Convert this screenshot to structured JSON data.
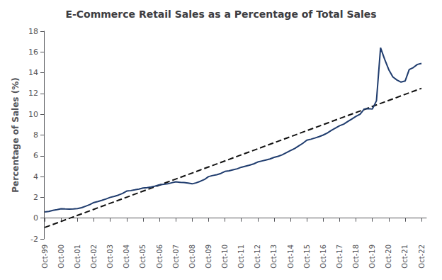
{
  "chart_data": {
    "type": "line",
    "title": "E-Commerce Retail Sales as a Percentage of Total Sales",
    "ylabel": "Percentage of Sales (%)",
    "series": [
      {
        "type": "line",
        "color": "#1F3C6E",
        "line_style": "solid",
        "x": [
          1999.75,
          2000,
          2000.25,
          2000.5,
          2000.75,
          2001,
          2001.25,
          2001.5,
          2001.75,
          2002,
          2002.25,
          2002.5,
          2002.75,
          2003,
          2003.25,
          2003.5,
          2003.75,
          2004,
          2004.25,
          2004.5,
          2004.75,
          2005,
          2005.25,
          2005.5,
          2005.75,
          2006,
          2006.25,
          2006.5,
          2006.75,
          2007,
          2007.25,
          2007.5,
          2007.75,
          2008,
          2008.25,
          2008.5,
          2008.75,
          2009,
          2009.25,
          2009.5,
          2009.75,
          2010,
          2010.25,
          2010.5,
          2010.75,
          2011,
          2011.25,
          2011.5,
          2011.75,
          2012,
          2012.25,
          2012.5,
          2012.75,
          2013,
          2013.25,
          2013.5,
          2013.75,
          2014,
          2014.25,
          2014.5,
          2014.75,
          2015,
          2015.25,
          2015.5,
          2015.75,
          2016,
          2016.25,
          2016.5,
          2016.75,
          2017,
          2017.25,
          2017.5,
          2017.75,
          2018,
          2018.25,
          2018.5,
          2018.75,
          2019,
          2019.25,
          2019.5,
          2019.75,
          2020,
          2020.25,
          2020.5,
          2020.75,
          2021,
          2021.25,
          2021.5,
          2021.75,
          2022,
          2022.25,
          2022.5,
          2022.75
        ],
        "values": [
          0.6,
          0.65,
          0.75,
          0.82,
          0.9,
          0.88,
          0.87,
          0.88,
          0.92,
          1.0,
          1.15,
          1.3,
          1.5,
          1.6,
          1.72,
          1.85,
          2.0,
          2.1,
          2.22,
          2.38,
          2.6,
          2.65,
          2.72,
          2.8,
          2.9,
          2.93,
          3.0,
          3.08,
          3.2,
          3.25,
          3.3,
          3.4,
          3.5,
          3.45,
          3.42,
          3.38,
          3.3,
          3.4,
          3.55,
          3.72,
          4.0,
          4.1,
          4.18,
          4.3,
          4.5,
          4.55,
          4.65,
          4.75,
          4.9,
          5.0,
          5.1,
          5.22,
          5.4,
          5.5,
          5.6,
          5.7,
          5.85,
          5.95,
          6.1,
          6.3,
          6.5,
          6.7,
          6.95,
          7.2,
          7.5,
          7.6,
          7.72,
          7.85,
          8.0,
          8.2,
          8.45,
          8.68,
          8.9,
          9.05,
          9.3,
          9.55,
          9.8,
          10.0,
          10.5,
          10.55,
          10.5,
          11.3,
          16.4,
          15.3,
          14.3,
          13.6,
          13.3,
          13.1,
          13.2,
          14.3,
          14.5,
          14.8,
          14.9
        ]
      },
      {
        "type": "line",
        "color": "#111111",
        "line_style": "dashed",
        "x": [
          1999.75,
          2022.75
        ],
        "values": [
          -0.9,
          12.5
        ]
      }
    ],
    "xlim": [
      1999.7,
      2023.05
    ],
    "xticks": [
      {
        "value": 1999.75,
        "label": "Oct-99"
      },
      {
        "value": 2000.75,
        "label": "Oct-00"
      },
      {
        "value": 2001.75,
        "label": "Oct-01"
      },
      {
        "value": 2002.75,
        "label": "Oct-02"
      },
      {
        "value": 2003.75,
        "label": "Oct-03"
      },
      {
        "value": 2004.75,
        "label": "Oct-04"
      },
      {
        "value": 2005.75,
        "label": "Oct-05"
      },
      {
        "value": 2006.75,
        "label": "Oct-06"
      },
      {
        "value": 2007.75,
        "label": "Oct-07"
      },
      {
        "value": 2008.75,
        "label": "Oct-08"
      },
      {
        "value": 2009.75,
        "label": "Oct-09"
      },
      {
        "value": 2010.75,
        "label": "Oct-10"
      },
      {
        "value": 2011.75,
        "label": "Oct-11"
      },
      {
        "value": 2012.75,
        "label": "Oct-12"
      },
      {
        "value": 2013.75,
        "label": "Oct-13"
      },
      {
        "value": 2014.75,
        "label": "Oct-14"
      },
      {
        "value": 2015.75,
        "label": "Oct-15"
      },
      {
        "value": 2016.75,
        "label": "Oct-16"
      },
      {
        "value": 2017.75,
        "label": "Oct-17"
      },
      {
        "value": 2018.75,
        "label": "Oct-18"
      },
      {
        "value": 2019.75,
        "label": "Oct-19"
      },
      {
        "value": 2020.75,
        "label": "Oct-20"
      },
      {
        "value": 2021.75,
        "label": "Oct-21"
      },
      {
        "value": 2022.75,
        "label": "Oct-22"
      }
    ],
    "ylim": [
      -2,
      18
    ],
    "yticks": [
      -2,
      0,
      2,
      4,
      6,
      8,
      10,
      12,
      14,
      16,
      18
    ],
    "grid": false
  }
}
